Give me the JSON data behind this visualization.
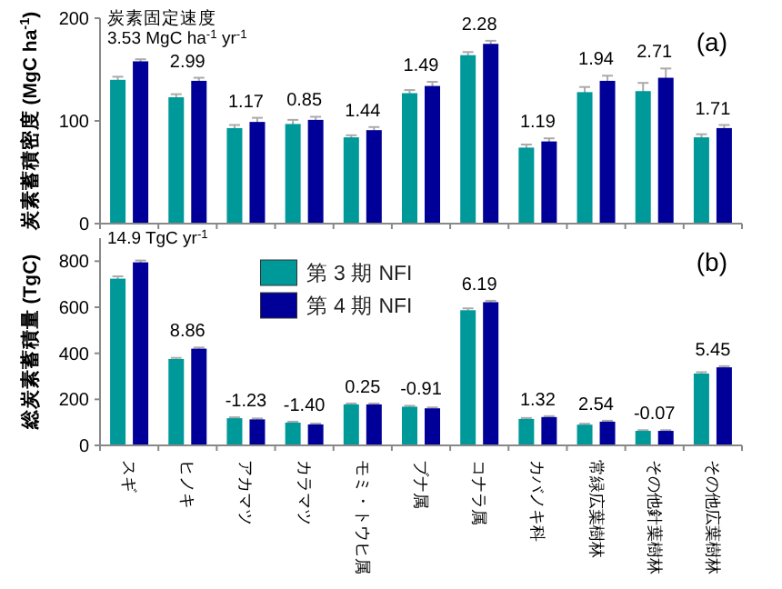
{
  "chart_data": [
    {
      "type": "bar",
      "title": "(a)",
      "ylabel": "炭素蓄積密度 (MgC ha$^{-1}$)",
      "categories": [
        "スギ",
        "ヒノキ",
        "アカマツ",
        "カラマツ",
        "モミ・トウヒ属",
        "ブナ属",
        "コナラ属",
        "カバノキ科",
        "常緑広葉樹林",
        "その他針葉樹林",
        "その他広葉樹林"
      ],
      "series": [
        {
          "color": "#009999",
          "values": [
            140,
            123,
            93,
            97,
            84,
            127,
            164,
            74,
            128,
            129,
            84
          ],
          "errors": [
            3,
            3,
            3,
            4,
            2,
            3,
            3,
            3,
            5,
            8,
            3
          ]
        },
        {
          "color": "#000099",
          "values": [
            158,
            139,
            99,
            101,
            91,
            134,
            175,
            80,
            139,
            142,
            93
          ],
          "errors": [
            2,
            3,
            4,
            3,
            3,
            4,
            3,
            3,
            5,
            9,
            3
          ]
        }
      ],
      "ylim": [
        0,
        200
      ],
      "yticks": [
        0,
        100,
        200
      ],
      "tick_labels": "y",
      "annotations": [
        "炭素固定速度",
        "3.53 MgC ha$^{-1}$ yr$^{-1}$",
        {
          "text": "2.99",
          "x": "ヒノキ",
          "y": 139
        },
        {
          "text": "1.17",
          "x": "アカマツ",
          "y": 99
        },
        {
          "text": "0.85",
          "x": "カラマツ",
          "y": 101
        },
        {
          "text": "1.44",
          "x": "モミ・トウヒ属",
          "y": 91
        },
        {
          "text": "1.49",
          "x": "ブナ属",
          "y": 134
        },
        {
          "text": "2.28",
          "x": "コナラ属",
          "y": 175
        },
        {
          "text": "1.19",
          "x": "カバノキ科",
          "y": 80
        },
        {
          "text": "1.94",
          "x": "常緑広葉樹林",
          "y": 139
        },
        {
          "text": "2.71",
          "x": "その他針葉樹林",
          "y": 142
        },
        {
          "text": "1.71",
          "x": "その他広葉樹林",
          "y": 93
        }
      ]
    },
    {
      "type": "bar",
      "title": "(b)",
      "ylabel": "総炭素蓄積量 (TgC)",
      "categories": [
        "スギ",
        "ヒノキ",
        "アカマツ",
        "カラマツ",
        "モミ・トウヒ属",
        "ブナ属",
        "コナラ属",
        "カバノキ科",
        "常緑広葉樹林",
        "その他針葉樹林",
        "その他広葉樹林"
      ],
      "series": [
        {
          "name": "第 3 期 NFI",
          "color": "#009999",
          "values": [
            724,
            375,
            118,
            99,
            178,
            168,
            587,
            115,
            90,
            63,
            312
          ],
          "errors": [
            10,
            5,
            4,
            4,
            4,
            4,
            8,
            4,
            4,
            3,
            6
          ]
        },
        {
          "name": "第 4 期 NFI",
          "color": "#000099",
          "values": [
            795,
            420,
            113,
            91,
            178,
            161,
            622,
            123,
            103,
            63,
            339
          ],
          "errors": [
            8,
            5,
            4,
            4,
            4,
            4,
            6,
            4,
            4,
            3,
            5
          ]
        }
      ],
      "ylim": [
        0,
        900
      ],
      "yticks": [
        0,
        200,
        400,
        600,
        800
      ],
      "legend": "top",
      "annotations": [
        "14.9 TgC yr$^{-1}$",
        {
          "text": "8.86",
          "x": "ヒノキ",
          "y": 420
        },
        {
          "text": "-1.23",
          "x": "アカマツ",
          "y": 118
        },
        {
          "text": "-1.40",
          "x": "カラマツ",
          "y": 99
        },
        {
          "text": "0.25",
          "x": "モミ・トウヒ属",
          "y": 178
        },
        {
          "text": "-0.91",
          "x": "ブナ属",
          "y": 168
        },
        {
          "text": "6.19",
          "x": "コナラ属",
          "y": 622
        },
        {
          "text": "1.32",
          "x": "カバノキ科",
          "y": 123
        },
        {
          "text": "2.54",
          "x": "常緑広葉樹林",
          "y": 103
        },
        {
          "text": "-0.07",
          "x": "その他針葉樹林",
          "y": 63
        },
        {
          "text": "5.45",
          "x": "その他広葉樹林",
          "y": 339
        }
      ]
    }
  ]
}
